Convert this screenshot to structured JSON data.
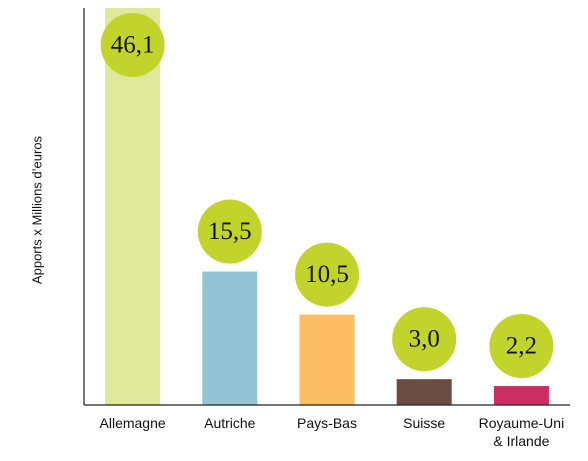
{
  "chart_data": {
    "type": "bar",
    "ylabel": "Apports x Millions d’euros",
    "categories": [
      "Allemagne",
      "Autriche",
      "Pays-Bas",
      "Suisse",
      "Royaume-Uni & Irlande"
    ],
    "values": [
      46.1,
      15.5,
      10.5,
      3.0,
      2.2
    ],
    "value_labels": [
      "46,1",
      "15,5",
      "10,5",
      "3,0",
      "2,2"
    ],
    "colors": [
      "#dfe89b",
      "#93c4d5",
      "#fdbd63",
      "#6b4c43",
      "#c92f62"
    ],
    "label_circle_color": "#c2d42c",
    "ylim": [
      0,
      46.1
    ]
  }
}
